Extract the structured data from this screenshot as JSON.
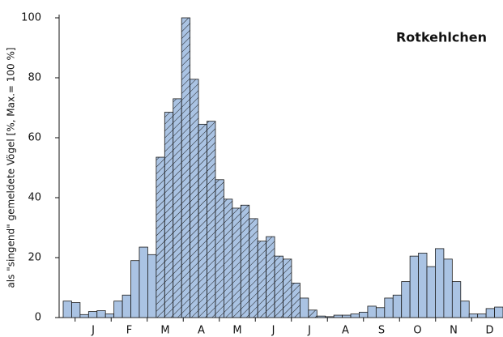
{
  "chart_data": {
    "type": "bar",
    "title": "Rotkehlchen",
    "y_label": "als \"singend\" gemeldete Vögel [%, Max.= 100 %]",
    "months": [
      "J",
      "F",
      "M",
      "A",
      "M",
      "J",
      "J",
      "A",
      "S",
      "O",
      "N",
      "D"
    ],
    "values": [
      5.5,
      5,
      1,
      2,
      2.3,
      1.2,
      5.5,
      7.5,
      19,
      23.5,
      21,
      53.5,
      68.5,
      73,
      100,
      79.5,
      64.5,
      65.5,
      46,
      39.5,
      36.5,
      37.5,
      33,
      25.5,
      27,
      20.5,
      19.5,
      11.5,
      6.5,
      2.5,
      0.5,
      0.3,
      0.8,
      0.8,
      1.2,
      1.8,
      3.8,
      3.3,
      6.5,
      7.5,
      12,
      20.5,
      21.5,
      17,
      23,
      19.5,
      12,
      5.5,
      1.2,
      1.2,
      3,
      3.5
    ],
    "hatched": [
      false,
      false,
      false,
      false,
      false,
      false,
      false,
      false,
      false,
      false,
      false,
      true,
      true,
      true,
      true,
      true,
      true,
      true,
      true,
      true,
      true,
      true,
      true,
      true,
      true,
      true,
      true,
      true,
      false,
      true,
      false,
      false,
      false,
      false,
      false,
      false,
      false,
      false,
      false,
      false,
      false,
      false,
      false,
      false,
      false,
      false,
      false,
      false,
      false,
      false,
      false,
      false
    ],
    "color": "#aac3e3",
    "ylim": [
      0,
      100
    ],
    "yticks": [
      0,
      20,
      40,
      60,
      80,
      100
    ]
  }
}
